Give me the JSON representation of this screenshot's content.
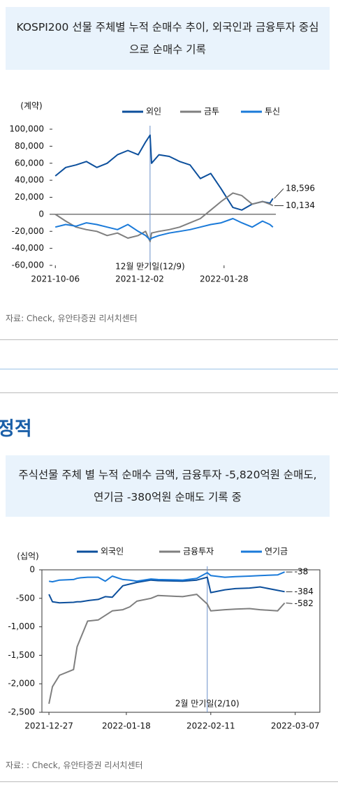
{
  "heading": "정적",
  "chart_data": [
    {
      "type": "line",
      "title": "KOSPI200 선물 주체별 누적 순매수 추이, 외국인과 금융투자 중심으로 순매수 기록",
      "y_unit": "(계약)",
      "source": "자료: Check, 유안타증권 리서치센터",
      "annotation": {
        "text": "12월 만기일(12/9)",
        "x": "2021-12-09"
      },
      "frame": false,
      "zero_line": true,
      "x": [
        "2021-10-06",
        "2021-10-13",
        "2021-10-20",
        "2021-10-27",
        "2021-11-03",
        "2021-11-10",
        "2021-11-17",
        "2021-11-24",
        "2021-12-01",
        "2021-12-06",
        "2021-12-09",
        "2021-12-10",
        "2021-12-15",
        "2021-12-22",
        "2021-12-29",
        "2022-01-05",
        "2022-01-12",
        "2022-01-19",
        "2022-01-26",
        "2022-02-03",
        "2022-02-09",
        "2022-02-16",
        "2022-02-23",
        "2022-02-28",
        "2022-03-02"
      ],
      "xlim": [
        "2021-10-04",
        "2022-03-04"
      ],
      "xticks": [
        "2021-10-06",
        "2021-12-02",
        "2022-01-28"
      ],
      "ylim": [
        -60000,
        100000
      ],
      "yticks": [
        {
          "value": -60000,
          "label": "-60,000"
        },
        {
          "value": -40000,
          "label": "-40,000"
        },
        {
          "value": -20000,
          "label": "-20,000"
        },
        0,
        {
          "value": 20000,
          "label": "20,000"
        },
        {
          "value": 40000,
          "label": "40,000"
        },
        {
          "value": 60000,
          "label": "60,000"
        },
        {
          "value": 80000,
          "label": "80,000"
        },
        {
          "value": 100000,
          "label": "100,000"
        }
      ],
      "series": [
        {
          "name": "외인",
          "color": "#0c4f9c",
          "values": [
            45000,
            55000,
            58000,
            62000,
            55000,
            60000,
            70000,
            75000,
            70000,
            85000,
            93000,
            60000,
            70000,
            68000,
            62000,
            58000,
            42000,
            48000,
            30000,
            8000,
            5000,
            12000,
            15000,
            13000,
            18596
          ],
          "value_labels": [
            null,
            null,
            null,
            null,
            null,
            null,
            null,
            null,
            null,
            null,
            null,
            null,
            null,
            null,
            null,
            null,
            null,
            null,
            null,
            null,
            null,
            null,
            null,
            null,
            "18,596"
          ]
        },
        {
          "name": "금투",
          "color": "#7f7f7f",
          "values": [
            0,
            -8000,
            -15000,
            -18000,
            -20000,
            -25000,
            -22000,
            -28000,
            -25000,
            -20000,
            -32000,
            -22000,
            -20000,
            -18000,
            -15000,
            -10000,
            -5000,
            5000,
            15000,
            25000,
            22000,
            12000,
            15000,
            12000,
            10134
          ],
          "value_labels": [
            null,
            null,
            null,
            null,
            null,
            null,
            null,
            null,
            null,
            null,
            null,
            null,
            null,
            null,
            null,
            null,
            null,
            null,
            null,
            null,
            null,
            null,
            null,
            null,
            "10,134"
          ]
        },
        {
          "name": "투신",
          "color": "#1a7ad9",
          "values": [
            -15000,
            -12000,
            -14000,
            -10000,
            -12000,
            -15000,
            -18000,
            -12000,
            -20000,
            -25000,
            -30000,
            -28000,
            -25000,
            -22000,
            -20000,
            -18000,
            -15000,
            -12000,
            -10000,
            -5000,
            -10000,
            -15000,
            -8000,
            -12000,
            -15000
          ]
        }
      ]
    },
    {
      "type": "line",
      "title": "주식선물 주체 별 누적 순매수 금액, 금융투자 -5,820억원 순매도, 연기금 -380억원 순매도 기록 중",
      "y_unit": "(십억)",
      "source": "자료: : Check, 유안타증권 리서치센터",
      "annotation": {
        "text": "2월 만기일(2/10)",
        "x": "2022-02-10"
      },
      "frame": true,
      "zero_line": false,
      "x": [
        "2021-12-27",
        "2021-12-28",
        "2021-12-30",
        "2022-01-03",
        "2022-01-04",
        "2022-01-05",
        "2022-01-07",
        "2022-01-10",
        "2022-01-12",
        "2022-01-14",
        "2022-01-17",
        "2022-01-19",
        "2022-01-21",
        "2022-01-25",
        "2022-01-27",
        "2022-02-03",
        "2022-02-07",
        "2022-02-10",
        "2022-02-11",
        "2022-02-15",
        "2022-02-18",
        "2022-02-22",
        "2022-02-25",
        "2022-03-02",
        "2022-03-04"
      ],
      "xlim": [
        "2021-12-25",
        "2022-03-14"
      ],
      "xticks": [
        "2021-12-27",
        "2022-01-18",
        "2022-02-11",
        "2022-03-07"
      ],
      "ylim": [
        -2500,
        0
      ],
      "yticks": [
        {
          "value": -2500,
          "label": "-2,500"
        },
        {
          "value": -2000,
          "label": "-2,000"
        },
        {
          "value": -1500,
          "label": "-1,500"
        },
        {
          "value": -1000,
          "label": "-1,000"
        },
        -500,
        0
      ],
      "series": [
        {
          "name": "외국인",
          "color": "#0c4f9c",
          "end_label": true,
          "values": [
            -430,
            -560,
            -580,
            -570,
            -560,
            -560,
            -540,
            -520,
            -470,
            -480,
            -280,
            -250,
            -220,
            -180,
            -190,
            -200,
            -180,
            -130,
            -400,
            -350,
            -330,
            -320,
            -300,
            -360,
            -384
          ]
        },
        {
          "name": "금융투자",
          "color": "#7f7f7f",
          "end_label": true,
          "values": [
            -2350,
            -2050,
            -1850,
            -1750,
            -1350,
            -1200,
            -900,
            -880,
            -800,
            -720,
            -700,
            -650,
            -550,
            -500,
            -450,
            -470,
            -430,
            -600,
            -720,
            -700,
            -690,
            -680,
            -700,
            -720,
            -582
          ]
        },
        {
          "name": "연기금",
          "color": "#1a7ad9",
          "end_label": true,
          "values": [
            -200,
            -210,
            -180,
            -170,
            -150,
            -140,
            -130,
            -130,
            -200,
            -110,
            -170,
            -180,
            -200,
            -160,
            -170,
            -180,
            -150,
            -50,
            -100,
            -130,
            -120,
            -110,
            -100,
            -90,
            -38
          ]
        }
      ]
    }
  ]
}
